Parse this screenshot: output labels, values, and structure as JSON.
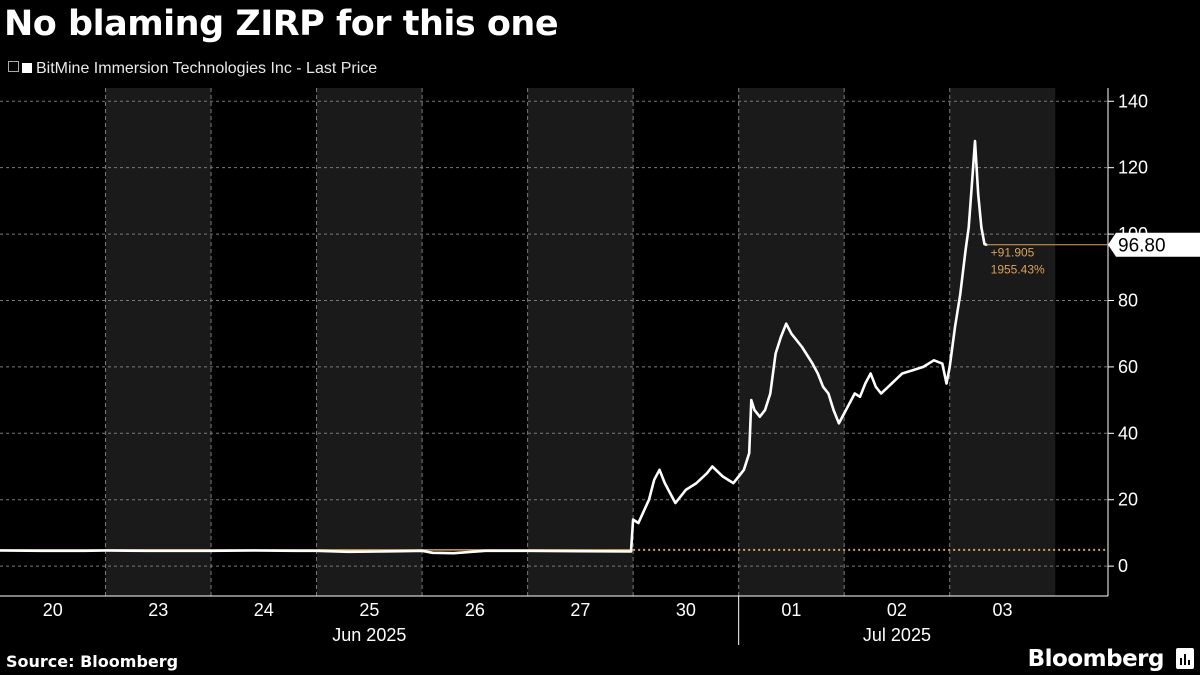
{
  "title": "No blaming ZIRP for this one",
  "legend": "BitMine Immersion Technologies Inc - Last Price",
  "source": "Source: Bloomberg",
  "brand": "Bloomberg",
  "last_price_label": "96.80",
  "change_abs": "+91.905",
  "change_pct": "1955.43%",
  "colors": {
    "background": "#000000",
    "shade": "#1a1a1a",
    "line": "#ffffff",
    "reference": "#d9a15a",
    "grid": "#7a7a7a"
  },
  "chart_data": {
    "type": "line",
    "series": [
      {
        "name": "BitMine Immersion Technologies Inc - Last Price",
        "points": [
          [
            0.0,
            4.7
          ],
          [
            0.4,
            4.6
          ],
          [
            0.8,
            4.6
          ],
          [
            1.0,
            4.7
          ],
          [
            1.4,
            4.6
          ],
          [
            1.8,
            4.6
          ],
          [
            2.0,
            4.6
          ],
          [
            2.4,
            4.7
          ],
          [
            2.8,
            4.6
          ],
          [
            3.0,
            4.6
          ],
          [
            3.3,
            4.3
          ],
          [
            3.6,
            4.4
          ],
          [
            3.8,
            4.5
          ],
          [
            4.0,
            4.6
          ],
          [
            4.1,
            4.0
          ],
          [
            4.3,
            3.9
          ],
          [
            4.6,
            4.6
          ],
          [
            5.0,
            4.6
          ],
          [
            5.5,
            4.5
          ],
          [
            5.98,
            4.4
          ],
          [
            6.0,
            14.0
          ],
          [
            6.05,
            13.0
          ],
          [
            6.1,
            16.5
          ],
          [
            6.15,
            20.0
          ],
          [
            6.2,
            26.0
          ],
          [
            6.25,
            29.0
          ],
          [
            6.3,
            25.0
          ],
          [
            6.35,
            22.0
          ],
          [
            6.4,
            19.0
          ],
          [
            6.5,
            23.0
          ],
          [
            6.6,
            25.0
          ],
          [
            6.7,
            28.0
          ],
          [
            6.75,
            30.0
          ],
          [
            6.85,
            27.0
          ],
          [
            6.95,
            25.0
          ],
          [
            7.0,
            27.0
          ],
          [
            7.05,
            29.0
          ],
          [
            7.1,
            34.0
          ],
          [
            7.12,
            50.0
          ],
          [
            7.15,
            47.0
          ],
          [
            7.2,
            45.0
          ],
          [
            7.25,
            47.0
          ],
          [
            7.3,
            52.0
          ],
          [
            7.35,
            64.0
          ],
          [
            7.4,
            69.0
          ],
          [
            7.45,
            73.0
          ],
          [
            7.5,
            70.0
          ],
          [
            7.6,
            66.0
          ],
          [
            7.7,
            61.0
          ],
          [
            7.75,
            58.0
          ],
          [
            7.8,
            54.0
          ],
          [
            7.85,
            52.0
          ],
          [
            7.9,
            47.0
          ],
          [
            7.95,
            43.0
          ],
          [
            8.0,
            46.0
          ],
          [
            8.05,
            49.0
          ],
          [
            8.1,
            52.0
          ],
          [
            8.15,
            51.0
          ],
          [
            8.2,
            55.0
          ],
          [
            8.25,
            58.0
          ],
          [
            8.3,
            54.0
          ],
          [
            8.35,
            52.0
          ],
          [
            8.45,
            55.0
          ],
          [
            8.55,
            58.0
          ],
          [
            8.65,
            59.0
          ],
          [
            8.75,
            60.0
          ],
          [
            8.85,
            62.0
          ],
          [
            8.93,
            61.0
          ],
          [
            8.97,
            55.0
          ],
          [
            9.0,
            60.0
          ],
          [
            9.05,
            72.0
          ],
          [
            9.1,
            82.0
          ],
          [
            9.15,
            95.0
          ],
          [
            9.18,
            102.0
          ],
          [
            9.21,
            115.0
          ],
          [
            9.24,
            128.0
          ],
          [
            9.27,
            112.0
          ],
          [
            9.3,
            102.0
          ],
          [
            9.33,
            97.0
          ],
          [
            9.35,
            96.8
          ]
        ]
      }
    ],
    "reference_line": {
      "value": 4.895,
      "style": "dotted"
    },
    "last_value": 96.8,
    "x_days": [
      "20",
      "23",
      "24",
      "25",
      "26",
      "27",
      "30",
      "01",
      "02",
      "03"
    ],
    "x_months": [
      {
        "label": "Jun 2025",
        "center_day": 3
      },
      {
        "label": "Jul 2025",
        "center_day": 8
      }
    ],
    "shaded_days": [
      1,
      3,
      5,
      7,
      9
    ],
    "xlim": [
      0,
      10.5
    ],
    "ylim": [
      -9,
      144
    ],
    "yticks": [
      0,
      20,
      40,
      60,
      80,
      100,
      120,
      140
    ],
    "y_axis_side": "right",
    "grid": true
  }
}
